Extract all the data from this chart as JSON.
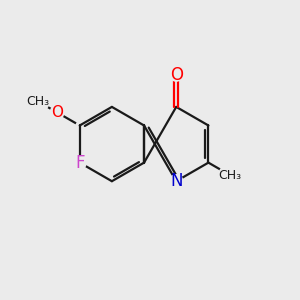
{
  "background_color": "#ebebeb",
  "bond_color": "#1a1a1a",
  "atom_colors": {
    "O": "#ff0000",
    "N": "#0000cc",
    "F": "#cc44cc"
  },
  "figsize": [
    3.0,
    3.0
  ],
  "dpi": 100
}
